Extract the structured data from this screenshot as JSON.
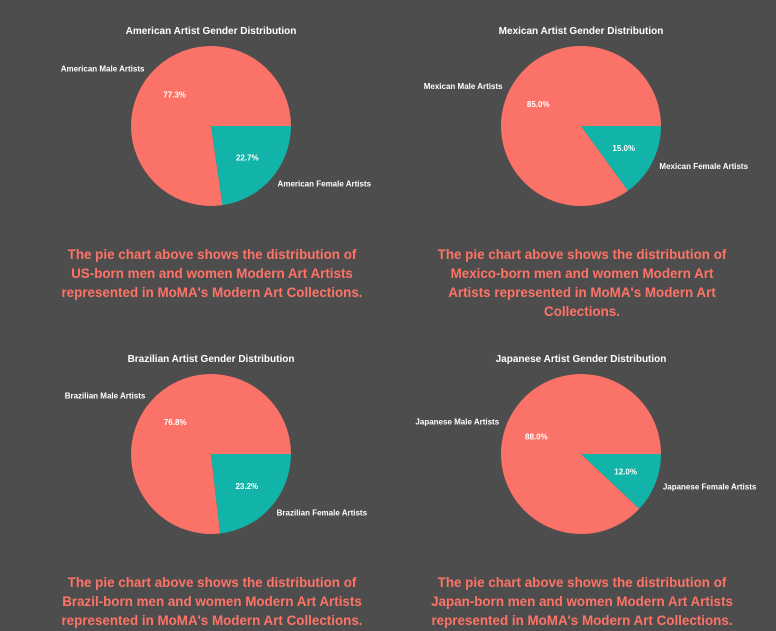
{
  "colors": {
    "male": "#fa7268",
    "female": "#12b3a8",
    "caption": "#ff7366",
    "background": "#4d4d4d"
  },
  "chart_data": [
    {
      "type": "pie",
      "title": "American Artist Gender Distribution",
      "slices": [
        {
          "label": "American Male Artists",
          "value": 77.3,
          "pct_text": "77.3%"
        },
        {
          "label": "American Female Artists",
          "value": 22.7,
          "pct_text": "22.7%"
        }
      ]
    },
    {
      "type": "pie",
      "title": "Mexican Artist Gender Distribution",
      "slices": [
        {
          "label": "Mexican Male Artists",
          "value": 85.0,
          "pct_text": "85.0%"
        },
        {
          "label": "Mexican Female Artists",
          "value": 15.0,
          "pct_text": "15.0%"
        }
      ]
    },
    {
      "type": "pie",
      "title": "Brazilian Artist Gender Distribution",
      "slices": [
        {
          "label": "Brazilian Male Artists",
          "value": 76.8,
          "pct_text": "76.8%"
        },
        {
          "label": "Brazilian Female Artists",
          "value": 23.2,
          "pct_text": "23.2%"
        }
      ]
    },
    {
      "type": "pie",
      "title": "Japanese Artist Gender Distribution",
      "slices": [
        {
          "label": "Japanese Male Artists",
          "value": 88.0,
          "pct_text": "88.0%"
        },
        {
          "label": "Japanese Female Artists",
          "value": 12.0,
          "pct_text": "12.0%"
        }
      ]
    }
  ],
  "captions": [
    [
      "The pie chart above shows the distribution of",
      "US-born men and women Modern Art Artists",
      "represented in MoMA's Modern Art Collections."
    ],
    [
      "The pie chart above shows the distribution of",
      "Mexico-born men and women Modern Art",
      "Artists represented in MoMA's Modern Art",
      "Collections."
    ],
    [
      "The pie chart above shows the distribution of",
      "Brazil-born men and women Modern Art Artists",
      "represented in MoMA's Modern Art Collections."
    ],
    [
      "The pie chart above shows the distribution of",
      "Japan-born men and women Modern Art Artists",
      "represented in MoMA's Modern Art Collections."
    ]
  ]
}
